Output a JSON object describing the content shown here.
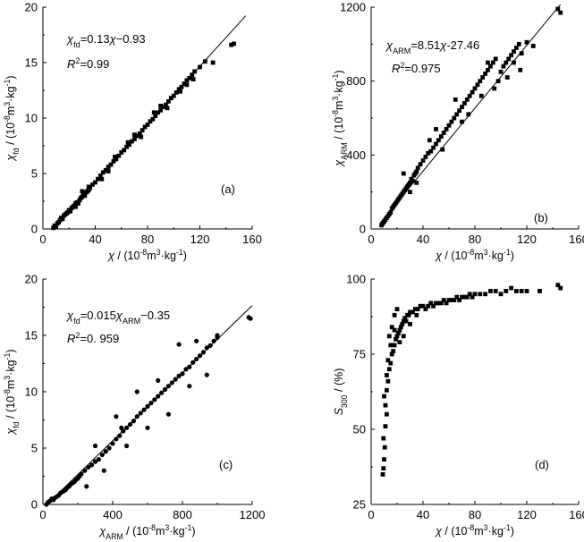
{
  "chart_data": [
    {
      "type": "scatter",
      "panel_label": "(a)",
      "marker": "square",
      "xlabel": "χ / (10⁻⁸m³·kg⁻¹)",
      "ylabel": "χfd / (10⁻⁸m³·kg⁻¹)",
      "xlim": [
        0,
        160
      ],
      "ylim": [
        0,
        20
      ],
      "xticks": [
        0,
        40,
        80,
        120,
        160
      ],
      "yticks": [
        0,
        5,
        10,
        15,
        20
      ],
      "xtick_labels": [
        "0",
        "40",
        "80",
        "120",
        "160"
      ],
      "ytick_labels": [
        "0",
        "5",
        "10",
        "15",
        "20"
      ],
      "annotation_eq": "χfd=0.13χ−0.93",
      "annotation_r2": "R²=0.99",
      "fit": {
        "slope": 0.13,
        "intercept": -0.93,
        "x_range": [
          7,
          155
        ]
      },
      "points": [
        [
          8,
          0.1
        ],
        [
          9,
          0.3
        ],
        [
          10,
          0.2
        ],
        [
          11,
          0.5
        ],
        [
          12,
          0.6
        ],
        [
          13,
          0.8
        ],
        [
          14,
          1.0
        ],
        [
          15,
          0.9
        ],
        [
          16,
          1.2
        ],
        [
          17,
          1.3
        ],
        [
          18,
          1.4
        ],
        [
          19,
          1.5
        ],
        [
          20,
          1.7
        ],
        [
          21,
          1.6
        ],
        [
          22,
          1.9
        ],
        [
          23,
          2.0
        ],
        [
          24,
          2.1
        ],
        [
          25,
          2.3
        ],
        [
          26,
          2.4
        ],
        [
          27,
          2.3
        ],
        [
          28,
          2.6
        ],
        [
          29,
          2.8
        ],
        [
          30,
          2.9
        ],
        [
          31,
          3.1
        ],
        [
          32,
          3.0
        ],
        [
          33,
          3.3
        ],
        [
          34,
          3.4
        ],
        [
          35,
          3.5
        ],
        [
          36,
          3.7
        ],
        [
          38,
          4.0
        ],
        [
          40,
          4.2
        ],
        [
          42,
          4.5
        ],
        [
          44,
          4.8
        ],
        [
          46,
          5.1
        ],
        [
          48,
          5.3
        ],
        [
          50,
          5.6
        ],
        [
          52,
          5.8
        ],
        [
          54,
          6.1
        ],
        [
          56,
          6.3
        ],
        [
          58,
          6.6
        ],
        [
          60,
          6.9
        ],
        [
          62,
          7.1
        ],
        [
          64,
          7.4
        ],
        [
          66,
          7.6
        ],
        [
          68,
          7.9
        ],
        [
          70,
          8.1
        ],
        [
          72,
          8.4
        ],
        [
          74,
          8.6
        ],
        [
          76,
          8.9
        ],
        [
          78,
          9.2
        ],
        [
          80,
          9.4
        ],
        [
          82,
          9.7
        ],
        [
          84,
          9.9
        ],
        [
          86,
          10.2
        ],
        [
          88,
          10.5
        ],
        [
          90,
          10.7
        ],
        [
          92,
          11.0
        ],
        [
          94,
          11.2
        ],
        [
          96,
          11.5
        ],
        [
          98,
          11.8
        ],
        [
          100,
          12.0
        ],
        [
          102,
          12.3
        ],
        [
          104,
          12.6
        ],
        [
          106,
          12.8
        ],
        [
          108,
          13.1
        ],
        [
          110,
          13.4
        ],
        [
          112,
          13.6
        ],
        [
          114,
          13.9
        ],
        [
          116,
          14.2
        ],
        [
          120,
          14.6
        ],
        [
          124,
          15.1
        ],
        [
          130,
          15.0
        ],
        [
          144,
          16.6
        ],
        [
          146,
          16.7
        ],
        [
          25,
          2.0
        ],
        [
          35,
          3.8
        ],
        [
          45,
          4.5
        ],
        [
          55,
          6.5
        ],
        [
          65,
          7.8
        ],
        [
          75,
          8.3
        ],
        [
          85,
          10.5
        ],
        [
          95,
          10.9
        ],
        [
          105,
          12.4
        ],
        [
          115,
          13.5
        ],
        [
          30,
          3.4
        ],
        [
          50,
          5.2
        ],
        [
          70,
          8.5
        ],
        [
          90,
          11.1
        ],
        [
          110,
          13.0
        ]
      ]
    },
    {
      "type": "scatter",
      "panel_label": "(b)",
      "marker": "square",
      "xlabel": "χ / (10⁻⁸m³·kg⁻¹)",
      "ylabel": "χARM / (10⁻⁸m³·kg⁻¹)",
      "xlim": [
        0,
        160
      ],
      "ylim": [
        0,
        1200
      ],
      "xticks": [
        0,
        40,
        80,
        120,
        160
      ],
      "yticks": [
        0,
        400,
        800,
        1200
      ],
      "xtick_labels": [
        "0",
        "40",
        "80",
        "120",
        "160"
      ],
      "ytick_labels": [
        "0",
        "400",
        "800",
        "1200"
      ],
      "annotation_eq": "χARM=8.51χ-27.46",
      "annotation_r2": "R²=0.975",
      "fit": {
        "slope": 8.51,
        "intercept": -27.46,
        "x_range": [
          7,
          146
        ]
      },
      "points": [
        [
          8,
          20
        ],
        [
          9,
          30
        ],
        [
          10,
          40
        ],
        [
          11,
          50
        ],
        [
          12,
          60
        ],
        [
          13,
          70
        ],
        [
          14,
          80
        ],
        [
          15,
          90
        ],
        [
          16,
          110
        ],
        [
          17,
          120
        ],
        [
          18,
          130
        ],
        [
          19,
          140
        ],
        [
          20,
          150
        ],
        [
          21,
          160
        ],
        [
          22,
          170
        ],
        [
          23,
          180
        ],
        [
          24,
          190
        ],
        [
          25,
          200
        ],
        [
          26,
          210
        ],
        [
          27,
          220
        ],
        [
          28,
          230
        ],
        [
          29,
          240
        ],
        [
          30,
          250
        ],
        [
          31,
          270
        ],
        [
          32,
          260
        ],
        [
          33,
          290
        ],
        [
          34,
          300
        ],
        [
          35,
          310
        ],
        [
          36,
          330
        ],
        [
          38,
          350
        ],
        [
          40,
          370
        ],
        [
          42,
          390
        ],
        [
          44,
          410
        ],
        [
          46,
          420
        ],
        [
          48,
          440
        ],
        [
          50,
          460
        ],
        [
          52,
          480
        ],
        [
          54,
          500
        ],
        [
          56,
          520
        ],
        [
          58,
          540
        ],
        [
          60,
          560
        ],
        [
          62,
          580
        ],
        [
          64,
          600
        ],
        [
          66,
          620
        ],
        [
          68,
          640
        ],
        [
          70,
          660
        ],
        [
          72,
          680
        ],
        [
          74,
          700
        ],
        [
          76,
          720
        ],
        [
          78,
          740
        ],
        [
          80,
          760
        ],
        [
          82,
          780
        ],
        [
          84,
          800
        ],
        [
          86,
          820
        ],
        [
          88,
          840
        ],
        [
          90,
          860
        ],
        [
          92,
          880
        ],
        [
          94,
          900
        ],
        [
          96,
          920
        ],
        [
          98,
          800
        ],
        [
          100,
          850
        ],
        [
          102,
          880
        ],
        [
          104,
          900
        ],
        [
          106,
          920
        ],
        [
          108,
          940
        ],
        [
          110,
          960
        ],
        [
          112,
          980
        ],
        [
          114,
          1000
        ],
        [
          116,
          950
        ],
        [
          120,
          1010
        ],
        [
          125,
          990
        ],
        [
          144,
          1190
        ],
        [
          146,
          1170
        ],
        [
          25,
          300
        ],
        [
          35,
          250
        ],
        [
          45,
          480
        ],
        [
          55,
          430
        ],
        [
          65,
          700
        ],
        [
          75,
          620
        ],
        [
          85,
          720
        ],
        [
          95,
          760
        ],
        [
          105,
          820
        ],
        [
          115,
          860
        ],
        [
          30,
          200
        ],
        [
          50,
          540
        ],
        [
          70,
          580
        ],
        [
          90,
          900
        ],
        [
          110,
          900
        ]
      ]
    },
    {
      "type": "scatter",
      "panel_label": "(c)",
      "marker": "circle",
      "xlabel": "χARM / (10⁻⁸m³·kg⁻¹)",
      "ylabel": "χfd / (10⁻⁸m³·kg⁻¹)",
      "xlim": [
        0,
        1200
      ],
      "ylim": [
        0,
        20
      ],
      "xticks": [
        0,
        400,
        800,
        1200
      ],
      "yticks": [
        0,
        5,
        10,
        15,
        20
      ],
      "xtick_labels": [
        "0",
        "400",
        "800",
        "1200"
      ],
      "ytick_labels": [
        "0",
        "5",
        "10",
        "15",
        "20"
      ],
      "annotation_eq": "χfd=0.015χARM−0.35",
      "annotation_r2": "R²=0. 959",
      "fit": {
        "slope": 0.015,
        "intercept": -0.35,
        "x_range": [
          20,
          1200
        ]
      },
      "points": [
        [
          20,
          0.0
        ],
        [
          30,
          0.2
        ],
        [
          40,
          0.3
        ],
        [
          50,
          0.5
        ],
        [
          60,
          0.4
        ],
        [
          70,
          0.6
        ],
        [
          80,
          0.7
        ],
        [
          90,
          0.8
        ],
        [
          100,
          1.0
        ],
        [
          110,
          1.1
        ],
        [
          120,
          1.2
        ],
        [
          130,
          1.3
        ],
        [
          140,
          1.5
        ],
        [
          150,
          1.6
        ],
        [
          160,
          1.8
        ],
        [
          170,
          1.9
        ],
        [
          180,
          2.0
        ],
        [
          190,
          2.2
        ],
        [
          200,
          2.3
        ],
        [
          210,
          2.5
        ],
        [
          220,
          2.7
        ],
        [
          240,
          3.0
        ],
        [
          260,
          3.3
        ],
        [
          280,
          3.5
        ],
        [
          300,
          3.8
        ],
        [
          320,
          4.0
        ],
        [
          340,
          4.4
        ],
        [
          360,
          4.7
        ],
        [
          380,
          5.0
        ],
        [
          400,
          5.4
        ],
        [
          420,
          5.8
        ],
        [
          440,
          6.1
        ],
        [
          460,
          6.5
        ],
        [
          480,
          6.8
        ],
        [
          500,
          7.1
        ],
        [
          520,
          7.4
        ],
        [
          540,
          7.8
        ],
        [
          560,
          8.1
        ],
        [
          580,
          8.4
        ],
        [
          600,
          8.7
        ],
        [
          620,
          9.0
        ],
        [
          640,
          9.3
        ],
        [
          660,
          9.6
        ],
        [
          680,
          9.9
        ],
        [
          700,
          10.2
        ],
        [
          720,
          10.5
        ],
        [
          740,
          10.8
        ],
        [
          760,
          11.1
        ],
        [
          780,
          11.4
        ],
        [
          800,
          11.6
        ],
        [
          820,
          12.0
        ],
        [
          840,
          12.2
        ],
        [
          860,
          12.6
        ],
        [
          880,
          12.9
        ],
        [
          900,
          13.2
        ],
        [
          920,
          13.5
        ],
        [
          940,
          13.9
        ],
        [
          960,
          14.1
        ],
        [
          980,
          14.5
        ],
        [
          1000,
          14.8
        ],
        [
          1180,
          16.6
        ],
        [
          1190,
          16.5
        ],
        [
          300,
          5.2
        ],
        [
          350,
          3.0
        ],
        [
          420,
          7.8
        ],
        [
          480,
          5.2
        ],
        [
          540,
          10.0
        ],
        [
          600,
          6.8
        ],
        [
          660,
          11.0
        ],
        [
          720,
          8.0
        ],
        [
          780,
          14.2
        ],
        [
          840,
          10.5
        ],
        [
          880,
          14.5
        ],
        [
          940,
          11.5
        ],
        [
          1000,
          15.0
        ],
        [
          250,
          1.6
        ],
        [
          450,
          6.8
        ]
      ]
    },
    {
      "type": "scatter",
      "panel_label": "(d)",
      "marker": "square",
      "xlabel": "χ / (10⁻⁸m³·kg⁻¹)",
      "ylabel": "S300 / (%)",
      "xlim": [
        0,
        160
      ],
      "ylim": [
        25,
        100
      ],
      "xticks": [
        0,
        40,
        80,
        120,
        160
      ],
      "yticks": [
        25,
        50,
        75,
        100
      ],
      "xtick_labels": [
        "0",
        "40",
        "80",
        "120",
        "160"
      ],
      "ytick_labels": [
        "25",
        "50",
        "75",
        "100"
      ],
      "annotation_eq": "",
      "annotation_r2": "",
      "fit": null,
      "points": [
        [
          9,
          35
        ],
        [
          9.5,
          37
        ],
        [
          10,
          40
        ],
        [
          10.5,
          44
        ],
        [
          9.5,
          47
        ],
        [
          11,
          51
        ],
        [
          12,
          55
        ],
        [
          11,
          58
        ],
        [
          10,
          61
        ],
        [
          12,
          63
        ],
        [
          13,
          66
        ],
        [
          12,
          68
        ],
        [
          14,
          70
        ],
        [
          15,
          72
        ],
        [
          13,
          73
        ],
        [
          16,
          75
        ],
        [
          17,
          76
        ],
        [
          18,
          78
        ],
        [
          19,
          80
        ],
        [
          20,
          81
        ],
        [
          21,
          82
        ],
        [
          22,
          83
        ],
        [
          23,
          84
        ],
        [
          24,
          85
        ],
        [
          25,
          86
        ],
        [
          26,
          87
        ],
        [
          27,
          86
        ],
        [
          28,
          88
        ],
        [
          29,
          88
        ],
        [
          30,
          89
        ],
        [
          32,
          89
        ],
        [
          34,
          90
        ],
        [
          36,
          90
        ],
        [
          38,
          91
        ],
        [
          40,
          91
        ],
        [
          42,
          90
        ],
        [
          44,
          91
        ],
        [
          46,
          92
        ],
        [
          48,
          91
        ],
        [
          50,
          92
        ],
        [
          52,
          92
        ],
        [
          54,
          92
        ],
        [
          56,
          93
        ],
        [
          58,
          92
        ],
        [
          60,
          93
        ],
        [
          62,
          93
        ],
        [
          64,
          93
        ],
        [
          66,
          94
        ],
        [
          68,
          93
        ],
        [
          70,
          94
        ],
        [
          72,
          94
        ],
        [
          74,
          94
        ],
        [
          76,
          95
        ],
        [
          78,
          94
        ],
        [
          80,
          95
        ],
        [
          84,
          95
        ],
        [
          88,
          95
        ],
        [
          92,
          96
        ],
        [
          96,
          96
        ],
        [
          100,
          95
        ],
        [
          104,
          96
        ],
        [
          108,
          97
        ],
        [
          112,
          96
        ],
        [
          116,
          96
        ],
        [
          120,
          96
        ],
        [
          130,
          96
        ],
        [
          144,
          98
        ],
        [
          146,
          97
        ],
        [
          15,
          78
        ],
        [
          18,
          83
        ],
        [
          22,
          79
        ],
        [
          25,
          81
        ],
        [
          30,
          85
        ],
        [
          35,
          88
        ],
        [
          18,
          88
        ],
        [
          20,
          90
        ],
        [
          14,
          81
        ],
        [
          16,
          84
        ]
      ]
    }
  ]
}
